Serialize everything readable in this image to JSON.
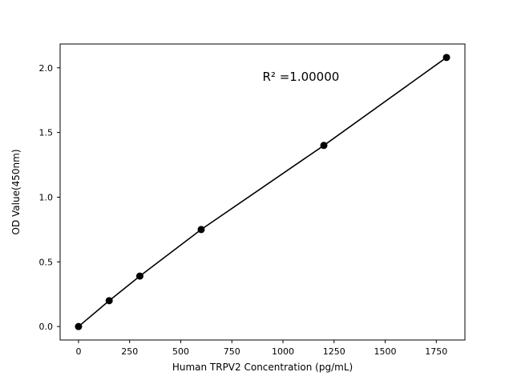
{
  "chart_data": {
    "type": "line",
    "title": "",
    "xlabel": "Human TRPV2 Concentration (pg/mL)",
    "ylabel": "OD Value(450nm)",
    "annotation": "R² =1.00000",
    "annotation_xy": [
      900,
      1.9
    ],
    "x": [
      0,
      150,
      300,
      600,
      1200,
      1800
    ],
    "y": [
      0.0,
      0.2,
      0.39,
      0.75,
      1.4,
      2.08
    ],
    "xlim": [
      -90,
      1890
    ],
    "ylim": [
      -0.104,
      2.184
    ],
    "xticks": [
      0,
      250,
      500,
      750,
      1000,
      1250,
      1500,
      1750
    ],
    "yticks": [
      0.0,
      0.5,
      1.0,
      1.5,
      2.0
    ],
    "grid": false,
    "legend": "none",
    "line_color": "#000000",
    "marker_color": "#000000",
    "marker": "circle",
    "background_color": "#ffffff"
  }
}
